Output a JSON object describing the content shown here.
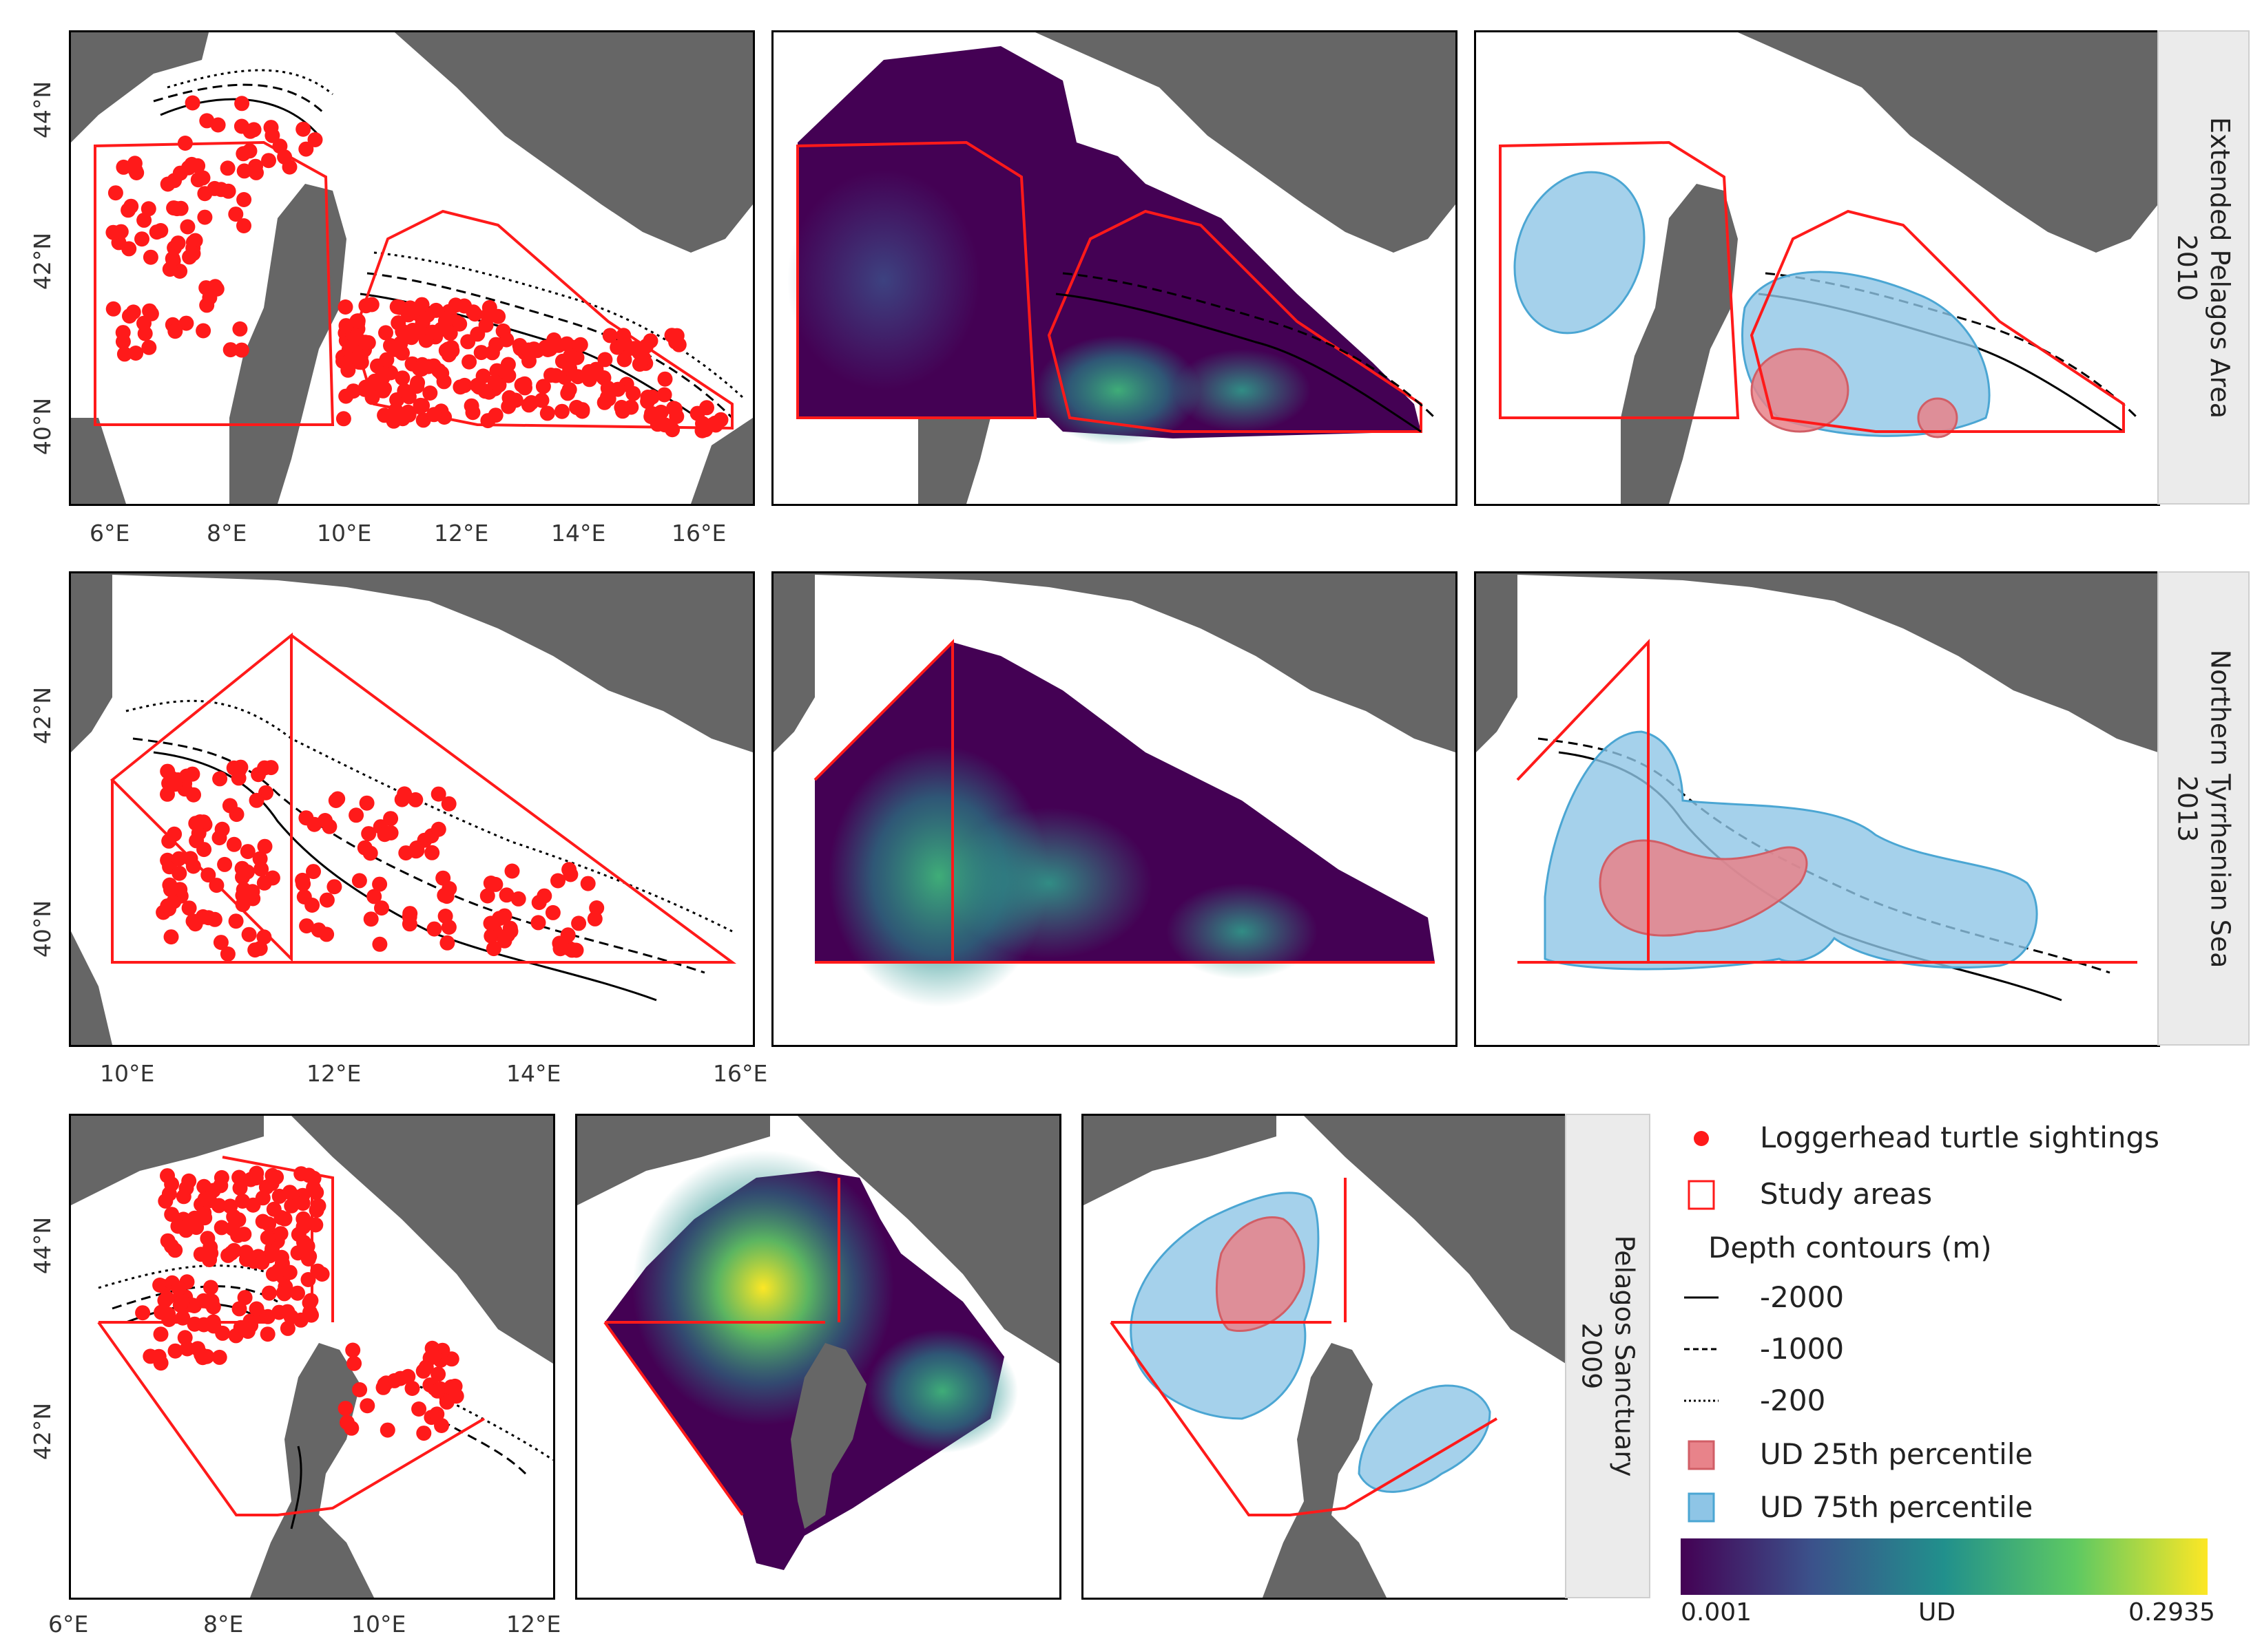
{
  "rows": [
    {
      "facet_label": "Extended Pelagos Area",
      "facet_year": "2010"
    },
    {
      "facet_label": "Northern Tyrrhenian Sea",
      "facet_year": "2013"
    },
    {
      "facet_label": "Pelagos Sanctuary",
      "facet_year": "2009"
    }
  ],
  "axes": {
    "row1_x": [
      "6°E",
      "8°E",
      "10°E",
      "12°E",
      "14°E",
      "16°E"
    ],
    "row1_y": [
      "44°N",
      "42°N",
      "40°N"
    ],
    "row2_x": [
      "10°E",
      "12°E",
      "14°E",
      "16°E"
    ],
    "row2_y": [
      "42°N",
      "40°N"
    ],
    "row3_x": [
      "6°E",
      "8°E",
      "10°E",
      "12°E"
    ],
    "row3_y": [
      "44°N",
      "42°N"
    ]
  },
  "legend": {
    "sightings": "Loggerhead turtle sightings",
    "study_areas": "Study areas",
    "depth_title": "Depth contours (m)",
    "depth_2000": "-2000",
    "depth_1000": "-1000",
    "depth_200": "-200",
    "ud25": "UD 25th percentile",
    "ud75": "UD 75th percentile",
    "colorbar_min": "0.001",
    "colorbar_label": "UD",
    "colorbar_max": "0.2935"
  },
  "colors": {
    "land": "#666666",
    "sighting": "#ff1a1a",
    "study_area": "#ff1a1a",
    "ud25": "#e8838a",
    "ud75": "#8ec5e6",
    "viridis": [
      "#440154",
      "#3b528b",
      "#21908c",
      "#5ec962",
      "#fde725"
    ]
  }
}
